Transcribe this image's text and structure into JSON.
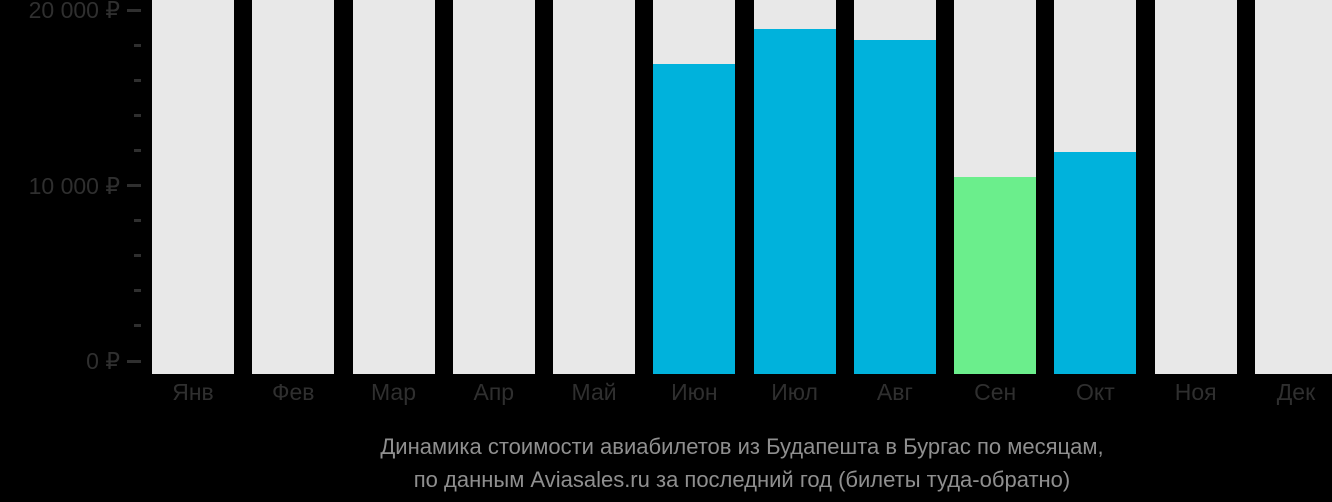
{
  "chart_data": {
    "type": "bar",
    "title": "Динамика стоимости авиабилетов из Будапешта в Бургас по месяцам,",
    "subtitle": "по данным Aviasales.ru за последний год (билеты туда-обратно)",
    "categories": [
      "Янв",
      "Фев",
      "Мар",
      "Апр",
      "Май",
      "Июн",
      "Июл",
      "Авг",
      "Сен",
      "Окт",
      "Ноя",
      "Дек"
    ],
    "values": [
      null,
      null,
      null,
      null,
      null,
      16900,
      18900,
      18300,
      10500,
      11900,
      null,
      null
    ],
    "point_colors": [
      null,
      null,
      null,
      null,
      null,
      "#00b2dc",
      "#00b2dc",
      "#00b2dc",
      "#6bee8c",
      "#00b2dc",
      null,
      null
    ],
    "no_data_bar_color": "#e8e8e8",
    "currency": "₽",
    "xlabel": "",
    "ylabel": "",
    "ylim": [
      0,
      20000
    ],
    "y_ticks": [
      {
        "value": 0,
        "label": "0 ₽"
      },
      {
        "value": 10000,
        "label": "10 000 ₽"
      },
      {
        "value": 20000,
        "label": "20 000 ₽"
      }
    ],
    "y_minor_tick_values": [
      2000,
      4000,
      6000,
      8000,
      12000,
      14000,
      16000,
      18000
    ],
    "grid": false,
    "legend": "none",
    "colors": {
      "background": "#000000",
      "axis_text": "#2f2f2f",
      "caption_text": "#8f8f8f",
      "bar_default": "#00b2dc",
      "bar_lowest": "#6bee8c",
      "bar_no_data": "#e8e8e8"
    }
  }
}
